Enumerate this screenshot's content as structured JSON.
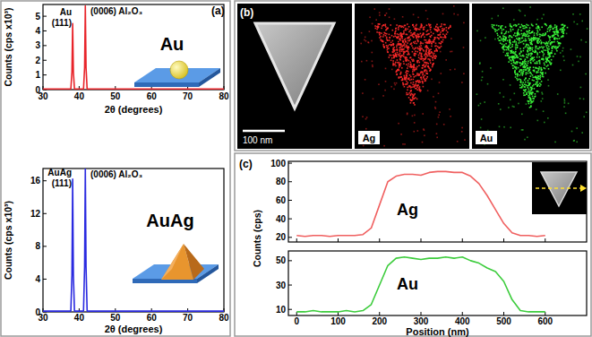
{
  "panel_labels": [
    "(a)",
    "(b)",
    "(c)"
  ],
  "image_panel": {
    "scale_bar": "100 nm",
    "maps": [
      "Ag",
      "Au"
    ]
  },
  "chart_data": [
    {
      "type": "line",
      "title": "Au",
      "xlabel": "2θ (degrees)",
      "ylabel": "Counts (cps x10³)",
      "xlim": [
        30,
        80
      ],
      "xticks": [
        30,
        40,
        50,
        60,
        70,
        80
      ],
      "ylim": [
        0,
        5.8
      ],
      "yticks": [
        0,
        1,
        2,
        3,
        4,
        5
      ],
      "annotations": [
        [
          "Au",
          "(111)"
        ],
        [
          "(0006) Al₂O₃"
        ]
      ],
      "x": [
        30,
        37.7,
        38.0,
        38.2,
        38.4,
        38.7,
        41.2,
        41.5,
        41.7,
        41.9,
        42.2,
        80
      ],
      "series": [
        {
          "color": "#e8242a",
          "values": [
            0.05,
            0.05,
            1.2,
            4.5,
            1.2,
            0.05,
            0.05,
            1.5,
            5.7,
            1.5,
            0.05,
            0.05
          ]
        }
      ]
    },
    {
      "type": "line",
      "title": "AuAg",
      "xlabel": "2θ (degrees)",
      "ylabel": "Counts (cps x10³)",
      "xlim": [
        30,
        80
      ],
      "xticks": [
        30,
        40,
        50,
        60,
        70,
        80
      ],
      "ylim": [
        0,
        17.5
      ],
      "yticks": [
        0,
        4,
        8,
        12,
        16
      ],
      "annotations": [
        [
          "AuAg",
          "(111)"
        ],
        [
          "(0006) Al₂O₃"
        ]
      ],
      "x": [
        30,
        37.7,
        38.0,
        38.2,
        38.4,
        38.7,
        41.2,
        41.5,
        41.7,
        41.9,
        42.2,
        80
      ],
      "series": [
        {
          "color": "#2a2ae0",
          "values": [
            0.1,
            0.1,
            4.5,
            16.2,
            4.5,
            0.1,
            0.1,
            5.5,
            17.5,
            5.5,
            0.1,
            0.1
          ]
        }
      ]
    },
    {
      "type": "line",
      "title": "Ag",
      "ylabel": "Counts (cps)",
      "tick_labels": "y",
      "xlim": [
        -20,
        700
      ],
      "xticks": [
        0,
        100,
        200,
        300,
        400,
        500,
        600
      ],
      "ylim": [
        15,
        102
      ],
      "yticks": [
        20,
        40,
        60,
        80,
        100
      ],
      "x": [
        0,
        20,
        40,
        60,
        80,
        100,
        120,
        140,
        160,
        180,
        200,
        220,
        240,
        260,
        280,
        300,
        320,
        340,
        360,
        380,
        400,
        420,
        440,
        460,
        480,
        500,
        520,
        540,
        560,
        580,
        600
      ],
      "series": [
        {
          "color": "#f06060",
          "values": [
            22,
            21,
            22,
            22,
            21,
            22,
            22,
            22,
            23,
            30,
            55,
            80,
            86,
            88,
            88,
            87,
            90,
            91,
            91,
            90,
            90,
            86,
            78,
            65,
            50,
            35,
            25,
            22,
            22,
            21,
            22
          ]
        }
      ]
    },
    {
      "type": "line",
      "title": "Au",
      "xlabel": "Position (nm)",
      "xlim": [
        -20,
        700
      ],
      "xticks": [
        0,
        100,
        200,
        300,
        400,
        500,
        600
      ],
      "ylim": [
        5,
        58
      ],
      "yticks": [
        10,
        30,
        50
      ],
      "x": [
        0,
        20,
        40,
        60,
        80,
        100,
        120,
        140,
        160,
        180,
        200,
        220,
        240,
        260,
        280,
        300,
        320,
        340,
        360,
        380,
        400,
        420,
        440,
        460,
        480,
        500,
        520,
        540,
        560,
        580,
        600
      ],
      "series": [
        {
          "color": "#3ccc3c",
          "values": [
            8,
            8,
            9,
            8,
            8,
            8,
            9,
            8,
            9,
            14,
            30,
            46,
            52,
            53,
            52,
            51,
            52,
            52,
            53,
            52,
            53,
            50,
            48,
            44,
            41,
            33,
            18,
            9,
            8,
            8,
            8
          ]
        }
      ]
    }
  ]
}
